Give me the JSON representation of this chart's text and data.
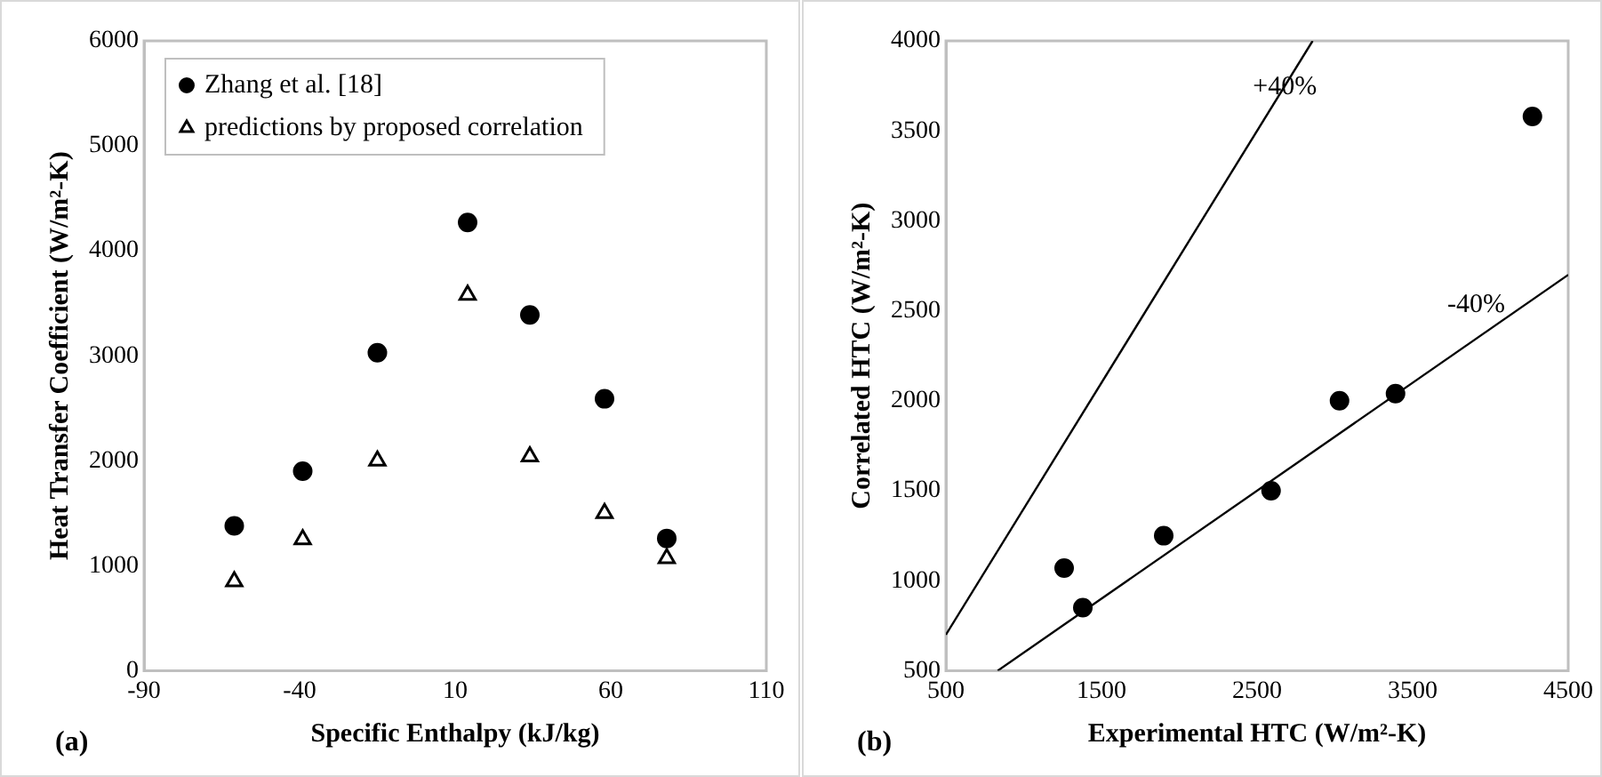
{
  "chart_data": [
    {
      "type": "scatter",
      "xlabel": "Specific Enthalpy (kJ/kg)",
      "ylabel": "Heat Transfer Coefficient (W/m²-K)",
      "xlim": [
        -90,
        110
      ],
      "xticks": [
        -90,
        -40,
        10,
        60,
        110
      ],
      "ylim": [
        0,
        6000
      ],
      "yticks": [
        0,
        1000,
        2000,
        3000,
        4000,
        5000,
        6000
      ],
      "grid": false,
      "legend": "top left",
      "annotations": [
        "(a)"
      ],
      "series": [
        {
          "name": "Zhang et al. [18]",
          "color": "#000000",
          "marker": "circle",
          "x": [
            -61,
            -39,
            -15,
            14,
            34,
            58,
            78
          ],
          "values": [
            1380,
            1900,
            3030,
            4270,
            3390,
            2590,
            1260
          ]
        },
        {
          "name": "predictions by proposed correlation",
          "color": "#000000",
          "marker": "triangle",
          "x": [
            -61,
            -39,
            -15,
            14,
            34,
            58,
            78
          ],
          "values": [
            850,
            1250,
            2000,
            3580,
            2040,
            1500,
            1070
          ]
        }
      ]
    },
    {
      "type": "scatter",
      "xlabel": "Experimental HTC (W/m²-K)",
      "ylabel": "Correlated HTC (W/m²-K)",
      "xlim": [
        500,
        4500
      ],
      "xticks": [
        500,
        1500,
        2500,
        3500,
        4500
      ],
      "ylim": [
        500,
        4000
      ],
      "yticks": [
        500,
        1000,
        1500,
        2000,
        2500,
        3000,
        3500,
        4000
      ],
      "grid": false,
      "legend": false,
      "annotations": [
        "(b)",
        {
          "text": "+40%",
          "x": 2450,
          "y": 3430
        },
        {
          "text": "-40%",
          "x": 3700,
          "y": 2220
        }
      ],
      "series": [
        {
          "color": "#000000",
          "marker": "circle",
          "x": [
            1380,
            1900,
            3030,
            4270,
            3390,
            2590,
            1260
          ],
          "values": [
            850,
            1250,
            2000,
            3580,
            2040,
            1500,
            1070
          ]
        },
        {
          "type": "line",
          "color": "#000000",
          "marker": "none",
          "x": [
            500,
            2857
          ],
          "values": [
            700,
            4000
          ]
        },
        {
          "type": "line",
          "color": "#000000",
          "marker": "none",
          "x": [
            833,
            4500
          ],
          "values": [
            500,
            2700
          ]
        }
      ]
    }
  ]
}
